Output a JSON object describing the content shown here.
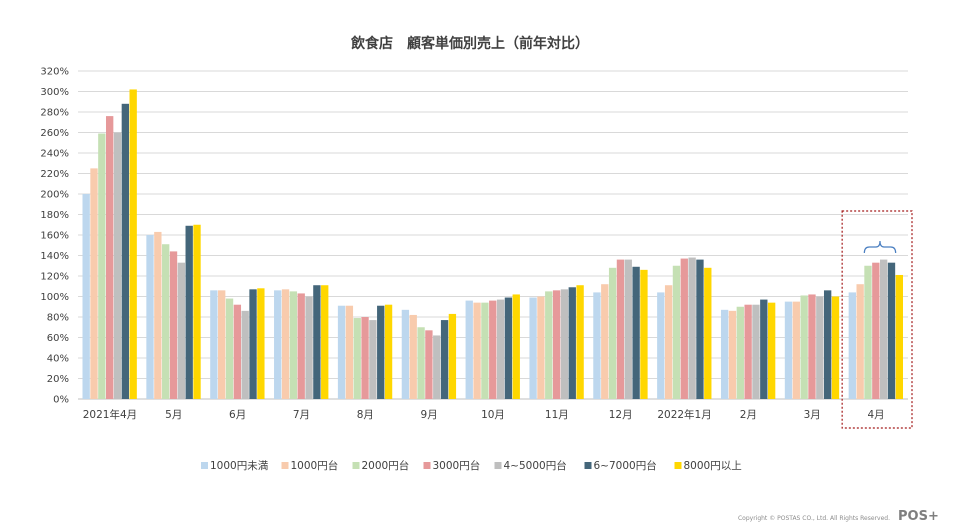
{
  "copyright": "Copyright © POSTAS CO., Ltd. All Rights Reserved.",
  "logo": "POS+",
  "chart_data": {
    "type": "bar",
    "title": "飲食店　顧客単価別売上（前年対比）",
    "xlabel": "",
    "ylabel": "",
    "ylim": [
      0,
      320
    ],
    "yticks": [
      "0%",
      "20%",
      "40%",
      "60%",
      "80%",
      "100%",
      "120%",
      "140%",
      "160%",
      "180%",
      "200%",
      "220%",
      "240%",
      "260%",
      "280%",
      "300%",
      "320%"
    ],
    "grid": true,
    "legend_position": "bottom",
    "categories": [
      "2021年4月",
      "5月",
      "6月",
      "7月",
      "8月",
      "9月",
      "10月",
      "11月",
      "12月",
      "2022年1月",
      "2月",
      "3月",
      "4月"
    ],
    "highlighted_category": "4月",
    "series": [
      {
        "name": "1000円未満",
        "color": "#bdd7ee",
        "values": [
          200,
          160,
          106,
          106,
          91,
          87,
          96,
          99,
          104,
          104,
          87,
          95,
          104
        ]
      },
      {
        "name": "1000円台",
        "color": "#f8cbad",
        "values": [
          225,
          163,
          106,
          107,
          91,
          82,
          94,
          100,
          112,
          111,
          86,
          95,
          112
        ]
      },
      {
        "name": "2000円台",
        "color": "#c5e0b4",
        "values": [
          259,
          151,
          98,
          105,
          79,
          70,
          94,
          105,
          128,
          130,
          90,
          101,
          130
        ]
      },
      {
        "name": "3000円台",
        "color": "#e6999a",
        "values": [
          276,
          144,
          92,
          103,
          80,
          67,
          96,
          106,
          136,
          137,
          92,
          102,
          133
        ]
      },
      {
        "name": "4~5000円台",
        "color": "#bfbfbf",
        "values": [
          260,
          133,
          86,
          100,
          77,
          62,
          97,
          107,
          136,
          138,
          92,
          100,
          136
        ]
      },
      {
        "name": "6~7000円台",
        "color": "#44667a",
        "values": [
          288,
          169,
          107,
          111,
          91,
          77,
          99,
          109,
          129,
          136,
          97,
          106,
          133
        ]
      },
      {
        "name": "8000円以上",
        "color": "#ffd700",
        "values": [
          302,
          170,
          108,
          111,
          92,
          83,
          102,
          111,
          126,
          128,
          94,
          100,
          121
        ]
      }
    ]
  }
}
